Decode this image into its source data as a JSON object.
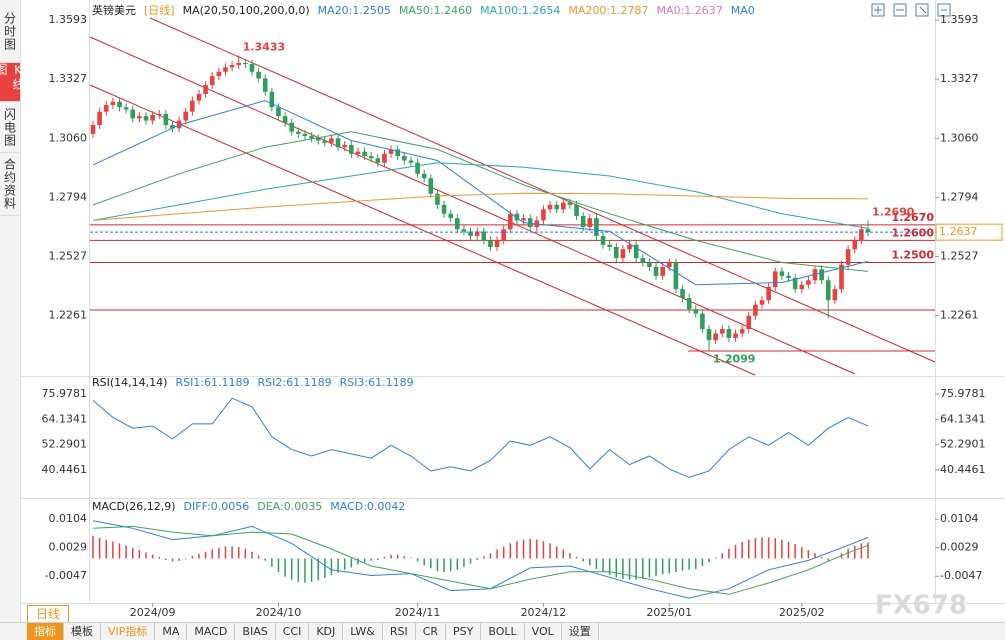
{
  "sidebar_tabs": [
    "分时图",
    "K线图",
    "闪电图",
    "合约资料"
  ],
  "period_button": "日线",
  "toolbar": [
    "指标",
    "模板",
    "VIP指标",
    "MA",
    "MACD",
    "BIAS",
    "CCI",
    "KDJ",
    "LW&",
    "RSI",
    "CR",
    "PSY",
    "BOLL",
    "VOL",
    "设置"
  ],
  "watermark": "FX678",
  "chart_data": [
    {
      "type": "candlestick",
      "title": "英镑美元",
      "period": "[日线]",
      "indicator": "MA(20,50,100,200,0,0)",
      "up_color": "#e8413f",
      "down_color": "#2e9e5b",
      "open": [
        1.308,
        1.312,
        1.318,
        1.321,
        1.3225,
        1.32,
        1.319,
        1.315,
        1.316,
        1.314,
        1.3165,
        1.317,
        1.312,
        1.3105,
        1.314,
        1.318,
        1.323,
        1.326,
        1.33,
        1.334,
        1.336,
        1.338,
        1.339,
        1.34,
        1.3395,
        1.336,
        1.333,
        1.327,
        1.32,
        1.316,
        1.313,
        1.309,
        1.308,
        1.307,
        1.306,
        1.305,
        1.304,
        1.306,
        1.302,
        1.303,
        1.299,
        1.3,
        1.298,
        1.297,
        1.295,
        1.299,
        1.301,
        1.298,
        1.296,
        1.295,
        1.29,
        1.288,
        1.281,
        1.276,
        1.272,
        1.27,
        1.265,
        1.264,
        1.262,
        1.264,
        1.26,
        1.257,
        1.26,
        1.265,
        1.272,
        1.269,
        1.27,
        1.266,
        1.269,
        1.274,
        1.276,
        1.274,
        1.277,
        1.276,
        1.271,
        1.266,
        1.27,
        1.262,
        1.258,
        1.257,
        1.252,
        1.256,
        1.258,
        1.252,
        1.25,
        1.248,
        1.244,
        1.248,
        1.25,
        1.238,
        1.234,
        1.229,
        1.227,
        1.22,
        1.215,
        1.218,
        1.22,
        1.216,
        1.218,
        1.22,
        1.226,
        1.231,
        1.233,
        1.239,
        1.246,
        1.244,
        1.243,
        1.238,
        1.24,
        1.242,
        1.247,
        1.242,
        1.233,
        1.238,
        1.249,
        1.256,
        1.26,
        1.265
      ],
      "high": [
        1.3138,
        1.3198,
        1.3228,
        1.3243,
        1.3243,
        1.3218,
        1.3208,
        1.3178,
        1.3178,
        1.3183,
        1.3188,
        1.3188,
        1.3138,
        1.3158,
        1.3198,
        1.3248,
        1.3278,
        1.3318,
        1.3358,
        1.3378,
        1.3398,
        1.3408,
        1.3433,
        1.3418,
        1.3413,
        1.3378,
        1.3348,
        1.3288,
        1.3218,
        1.3178,
        1.3148,
        1.3108,
        1.3098,
        1.3088,
        1.3078,
        1.3068,
        1.3078,
        1.3078,
        1.3048,
        1.3048,
        1.3018,
        1.3018,
        1.2998,
        1.2988,
        1.3008,
        1.3028,
        1.3028,
        1.2998,
        1.2978,
        1.2968,
        1.2918,
        1.2898,
        1.2828,
        1.2778,
        1.2738,
        1.2718,
        1.2668,
        1.2658,
        1.2658,
        1.2658,
        1.2618,
        1.2618,
        1.2668,
        1.2738,
        1.2738,
        1.2718,
        1.2718,
        1.2708,
        1.2758,
        1.2778,
        1.2778,
        1.2788,
        1.2788,
        1.2778,
        1.2728,
        1.2718,
        1.2718,
        1.2638,
        1.2598,
        1.2588,
        1.2578,
        1.2598,
        1.2598,
        1.2538,
        1.2518,
        1.2498,
        1.2498,
        1.2518,
        1.2518,
        1.2398,
        1.2358,
        1.2308,
        1.2288,
        1.2218,
        1.2198,
        1.2218,
        1.2218,
        1.2198,
        1.2218,
        1.2278,
        1.2328,
        1.2348,
        1.2408,
        1.2478,
        1.2478,
        1.2458,
        1.2448,
        1.2418,
        1.2438,
        1.2488,
        1.2488,
        1.2438,
        1.2398,
        1.2508,
        1.2578,
        1.2618,
        1.2668,
        1.269
      ],
      "low": [
        1.3062,
        1.3102,
        1.3162,
        1.3192,
        1.3182,
        1.3172,
        1.3132,
        1.3132,
        1.3122,
        1.3122,
        1.3147,
        1.3102,
        1.3087,
        1.3087,
        1.3122,
        1.3162,
        1.3212,
        1.3242,
        1.3282,
        1.3322,
        1.3342,
        1.3362,
        1.3372,
        1.3377,
        1.3342,
        1.3312,
        1.3252,
        1.3182,
        1.3142,
        1.3112,
        1.3072,
        1.3062,
        1.3052,
        1.3042,
        1.3032,
        1.3022,
        1.3022,
        1.3002,
        1.3002,
        1.2972,
        1.2972,
        1.2962,
        1.2952,
        1.2932,
        1.2932,
        1.2972,
        1.2962,
        1.2942,
        1.2932,
        1.2882,
        1.2862,
        1.2792,
        1.2742,
        1.2702,
        1.2682,
        1.2632,
        1.2622,
        1.2602,
        1.2602,
        1.2582,
        1.2552,
        1.2552,
        1.2582,
        1.2632,
        1.2672,
        1.2672,
        1.2642,
        1.2642,
        1.2672,
        1.2722,
        1.2722,
        1.2722,
        1.2742,
        1.2692,
        1.2642,
        1.2642,
        1.2602,
        1.2562,
        1.2552,
        1.2502,
        1.2502,
        1.2542,
        1.2502,
        1.2482,
        1.2462,
        1.2422,
        1.2422,
        1.2462,
        1.2362,
        1.2322,
        1.2272,
        1.2252,
        1.2182,
        1.2099,
        1.2132,
        1.2162,
        1.2142,
        1.2142,
        1.2162,
        1.2182,
        1.2242,
        1.2292,
        1.2312,
        1.2372,
        1.2422,
        1.2412,
        1.2362,
        1.2362,
        1.2382,
        1.2402,
        1.2402,
        1.225,
        1.2312,
        1.2362,
        1.2472,
        1.2542,
        1.2582,
        1.2619
      ],
      "close": [
        1.312,
        1.318,
        1.321,
        1.3225,
        1.32,
        1.319,
        1.315,
        1.316,
        1.314,
        1.3165,
        1.317,
        1.312,
        1.3105,
        1.314,
        1.318,
        1.323,
        1.326,
        1.33,
        1.334,
        1.336,
        1.338,
        1.339,
        1.34,
        1.3395,
        1.336,
        1.333,
        1.327,
        1.32,
        1.316,
        1.313,
        1.309,
        1.308,
        1.307,
        1.306,
        1.305,
        1.304,
        1.306,
        1.302,
        1.303,
        1.299,
        1.3,
        1.298,
        1.297,
        1.295,
        1.299,
        1.301,
        1.298,
        1.296,
        1.295,
        1.29,
        1.288,
        1.281,
        1.276,
        1.272,
        1.27,
        1.265,
        1.264,
        1.262,
        1.264,
        1.26,
        1.257,
        1.26,
        1.265,
        1.272,
        1.269,
        1.27,
        1.266,
        1.269,
        1.274,
        1.276,
        1.274,
        1.277,
        1.276,
        1.271,
        1.266,
        1.27,
        1.262,
        1.258,
        1.257,
        1.252,
        1.256,
        1.258,
        1.252,
        1.25,
        1.248,
        1.244,
        1.248,
        1.25,
        1.238,
        1.234,
        1.229,
        1.227,
        1.22,
        1.215,
        1.218,
        1.22,
        1.216,
        1.218,
        1.22,
        1.226,
        1.231,
        1.233,
        1.239,
        1.246,
        1.244,
        1.243,
        1.238,
        1.24,
        1.242,
        1.247,
        1.242,
        1.233,
        1.238,
        1.249,
        1.256,
        1.26,
        1.265,
        1.2637
      ],
      "series": [
        {
          "name": "MA20:1.2505",
          "color": "#2f7fd8",
          "x": [
            0,
            13,
            26,
            39,
            52,
            65,
            78,
            91,
            104,
            117
          ],
          "values": [
            1.294,
            1.312,
            1.323,
            1.305,
            1.296,
            1.268,
            1.264,
            1.24,
            1.241,
            1.2505
          ]
        },
        {
          "name": "MA50:1.2460",
          "color": "#3aa55d",
          "x": [
            0,
            13,
            26,
            39,
            52,
            65,
            78,
            91,
            104,
            117
          ],
          "values": [
            1.276,
            1.29,
            1.302,
            1.309,
            1.301,
            1.285,
            1.272,
            1.26,
            1.25,
            1.246
          ]
        },
        {
          "name": "MA100:1.2654",
          "color": "#2aa6b8",
          "x": [
            0,
            13,
            26,
            39,
            52,
            65,
            78,
            91,
            104,
            117
          ],
          "values": [
            1.269,
            1.276,
            1.283,
            1.289,
            1.295,
            1.293,
            1.289,
            1.282,
            1.272,
            1.2654
          ]
        },
        {
          "name": "MA200:1.2787",
          "color": "#f0962e",
          "x": [
            0,
            13,
            26,
            39,
            52,
            65,
            78,
            91,
            104,
            117
          ],
          "values": [
            1.269,
            1.272,
            1.275,
            1.2775,
            1.28,
            1.2812,
            1.281,
            1.28,
            1.279,
            1.2787
          ]
        }
      ],
      "legend_extra": [
        {
          "text": "MA0:1.2637",
          "color": "#e377c2"
        },
        {
          "text": "MA0",
          "color": "#2f7fd8"
        }
      ],
      "levels": [
        {
          "value": 1.267,
          "label": "1.2670"
        },
        {
          "value": 1.26,
          "label": "1.2600"
        },
        {
          "value": 1.25,
          "label": "1.2500"
        }
      ],
      "last_price": {
        "value": 1.2637,
        "label": "1.2637"
      },
      "annotations": [
        {
          "index": 22,
          "value": 1.3433,
          "label": "1.3433",
          "color": "#e8413f"
        },
        {
          "index": 93,
          "value": 1.2099,
          "label": "1.2099",
          "color": "#2e9e5b"
        },
        {
          "index": 117,
          "value": 1.269,
          "label": "1.2690",
          "color": "#e8413f"
        }
      ],
      "ylim": [
        1.1993,
        1.3661
      ],
      "yticks": [
        1.3593,
        1.3327,
        {
          "value": 1.306,
          "label": "1.3060"
        },
        1.2794,
        1.2527,
        1.2261
      ]
    },
    {
      "type": "line",
      "title": "RSI(14,14,14)",
      "series": [
        {
          "name": "RSI1:61.1189",
          "color": "#2f7fd8",
          "x": [
            0,
            3,
            6,
            9,
            12,
            15,
            18,
            21,
            24,
            27,
            30,
            33,
            36,
            39,
            42,
            45,
            48,
            51,
            54,
            57,
            60,
            63,
            66,
            69,
            72,
            75,
            78,
            81,
            84,
            87,
            90,
            93,
            96,
            99,
            102,
            105,
            108,
            111,
            114,
            117
          ],
          "values": [
            73,
            65,
            60,
            61,
            55,
            62,
            62,
            74,
            70,
            56,
            50,
            47,
            50,
            48,
            46,
            52,
            47,
            40,
            42,
            40,
            45,
            54,
            52,
            56,
            51,
            41,
            50,
            43,
            47,
            41,
            37,
            40,
            50,
            56,
            52,
            58,
            52,
            60,
            65,
            61.1189
          ]
        }
      ],
      "legend_extra": [
        {
          "text": "RSI2:61.1189",
          "color": "#2f7fd8"
        },
        {
          "text": "RSI3:61.1189",
          "color": "#2f7fd8"
        }
      ],
      "ylim": [
        27.85,
        83.45
      ],
      "yticks": [
        75.9781,
        64.1341,
        52.2901,
        40.4461
      ]
    },
    {
      "type": "macd",
      "title": "MACD(26,12,9)",
      "series": [
        {
          "name": "DIFF:0.0056",
          "color": "#2f7fd8",
          "x": [
            0,
            6,
            12,
            18,
            24,
            30,
            36,
            42,
            48,
            54,
            60,
            66,
            72,
            78,
            84,
            90,
            96,
            102,
            108,
            114,
            117
          ],
          "values": [
            0.01,
            0.008,
            0.005,
            0.006,
            0.0085,
            0.004,
            -0.003,
            -0.0045,
            -0.004,
            -0.0085,
            -0.008,
            -0.0025,
            -0.002,
            -0.005,
            -0.008,
            -0.0105,
            -0.008,
            -0.003,
            -0.0005,
            0.0035,
            0.0056
          ]
        },
        {
          "name": "DEA:0.0035",
          "color": "#3aa55d",
          "x": [
            0,
            6,
            12,
            18,
            24,
            30,
            36,
            42,
            48,
            54,
            60,
            66,
            72,
            78,
            84,
            90,
            96,
            102,
            108,
            114,
            117
          ],
          "values": [
            0.008,
            0.0085,
            0.007,
            0.006,
            0.007,
            0.0065,
            0.0025,
            -0.002,
            -0.004,
            -0.006,
            -0.008,
            -0.0055,
            -0.0035,
            -0.0035,
            -0.0055,
            -0.008,
            -0.0095,
            -0.0065,
            -0.003,
            0.0015,
            0.0035
          ]
        }
      ],
      "histogram": {
        "name": "MACD:0.0042",
        "color": "#2f7fd8",
        "up_color": "#e8413f",
        "down_color": "#2e9e5b",
        "values": [
          0.006,
          0.0055,
          0.005,
          0.0045,
          0.004,
          0.0034,
          0.0028,
          0.0022,
          0.0016,
          0.001,
          0.0004,
          -0.0004,
          -0.0008,
          -0.0006,
          -0.0002,
          0.0006,
          0.0012,
          0.0018,
          0.0024,
          0.0028,
          0.0032,
          0.0032,
          0.003,
          0.0026,
          0.0018,
          0.0008,
          -0.0006,
          -0.0022,
          -0.0036,
          -0.0048,
          -0.0056,
          -0.0062,
          -0.0064,
          -0.0062,
          -0.0058,
          -0.0052,
          -0.0044,
          -0.0038,
          -0.003,
          -0.0024,
          -0.0016,
          -0.001,
          -0.0006,
          -0.0004,
          0.0004,
          0.001,
          0.001,
          0.0006,
          0.0002,
          -0.0008,
          -0.0018,
          -0.0026,
          -0.0034,
          -0.0036,
          -0.0034,
          -0.003,
          -0.0022,
          -0.0014,
          -0.0004,
          0.0006,
          0.0014,
          0.0024,
          0.0032,
          0.004,
          0.0046,
          0.005,
          0.0052,
          0.005,
          0.0046,
          0.004,
          0.0032,
          0.0024,
          0.0014,
          0.0004,
          -0.0008,
          -0.0018,
          -0.0028,
          -0.0036,
          -0.0044,
          -0.005,
          -0.0054,
          -0.0056,
          -0.0056,
          -0.0054,
          -0.005,
          -0.0046,
          -0.0042,
          -0.004,
          -0.0036,
          -0.0032,
          -0.003,
          -0.0028,
          -0.002,
          -0.001,
          0.0002,
          0.0014,
          0.0026,
          0.0036,
          0.0044,
          0.005,
          0.0054,
          0.0056,
          0.0056,
          0.0054,
          0.005,
          0.0044,
          0.0038,
          0.003,
          0.0022,
          0.0014,
          0.0004,
          -0.0006,
          0.0002,
          0.0014,
          0.0026,
          0.0034,
          0.004,
          0.0042
        ]
      },
      "ylim": [
        -0.0118,
        0.0155
      ],
      "yticks": [
        0.0104,
        0.0029,
        -0.0047
      ],
      "xticks": [
        {
          "value": 9,
          "label": "2024/09"
        },
        {
          "value": 28,
          "label": "2024/10"
        },
        {
          "value": 49,
          "label": "2024/11"
        },
        {
          "value": 68,
          "label": "2024/12"
        },
        {
          "value": 87,
          "label": "2025/01"
        },
        {
          "value": 107,
          "label": "2025/02"
        }
      ]
    }
  ]
}
